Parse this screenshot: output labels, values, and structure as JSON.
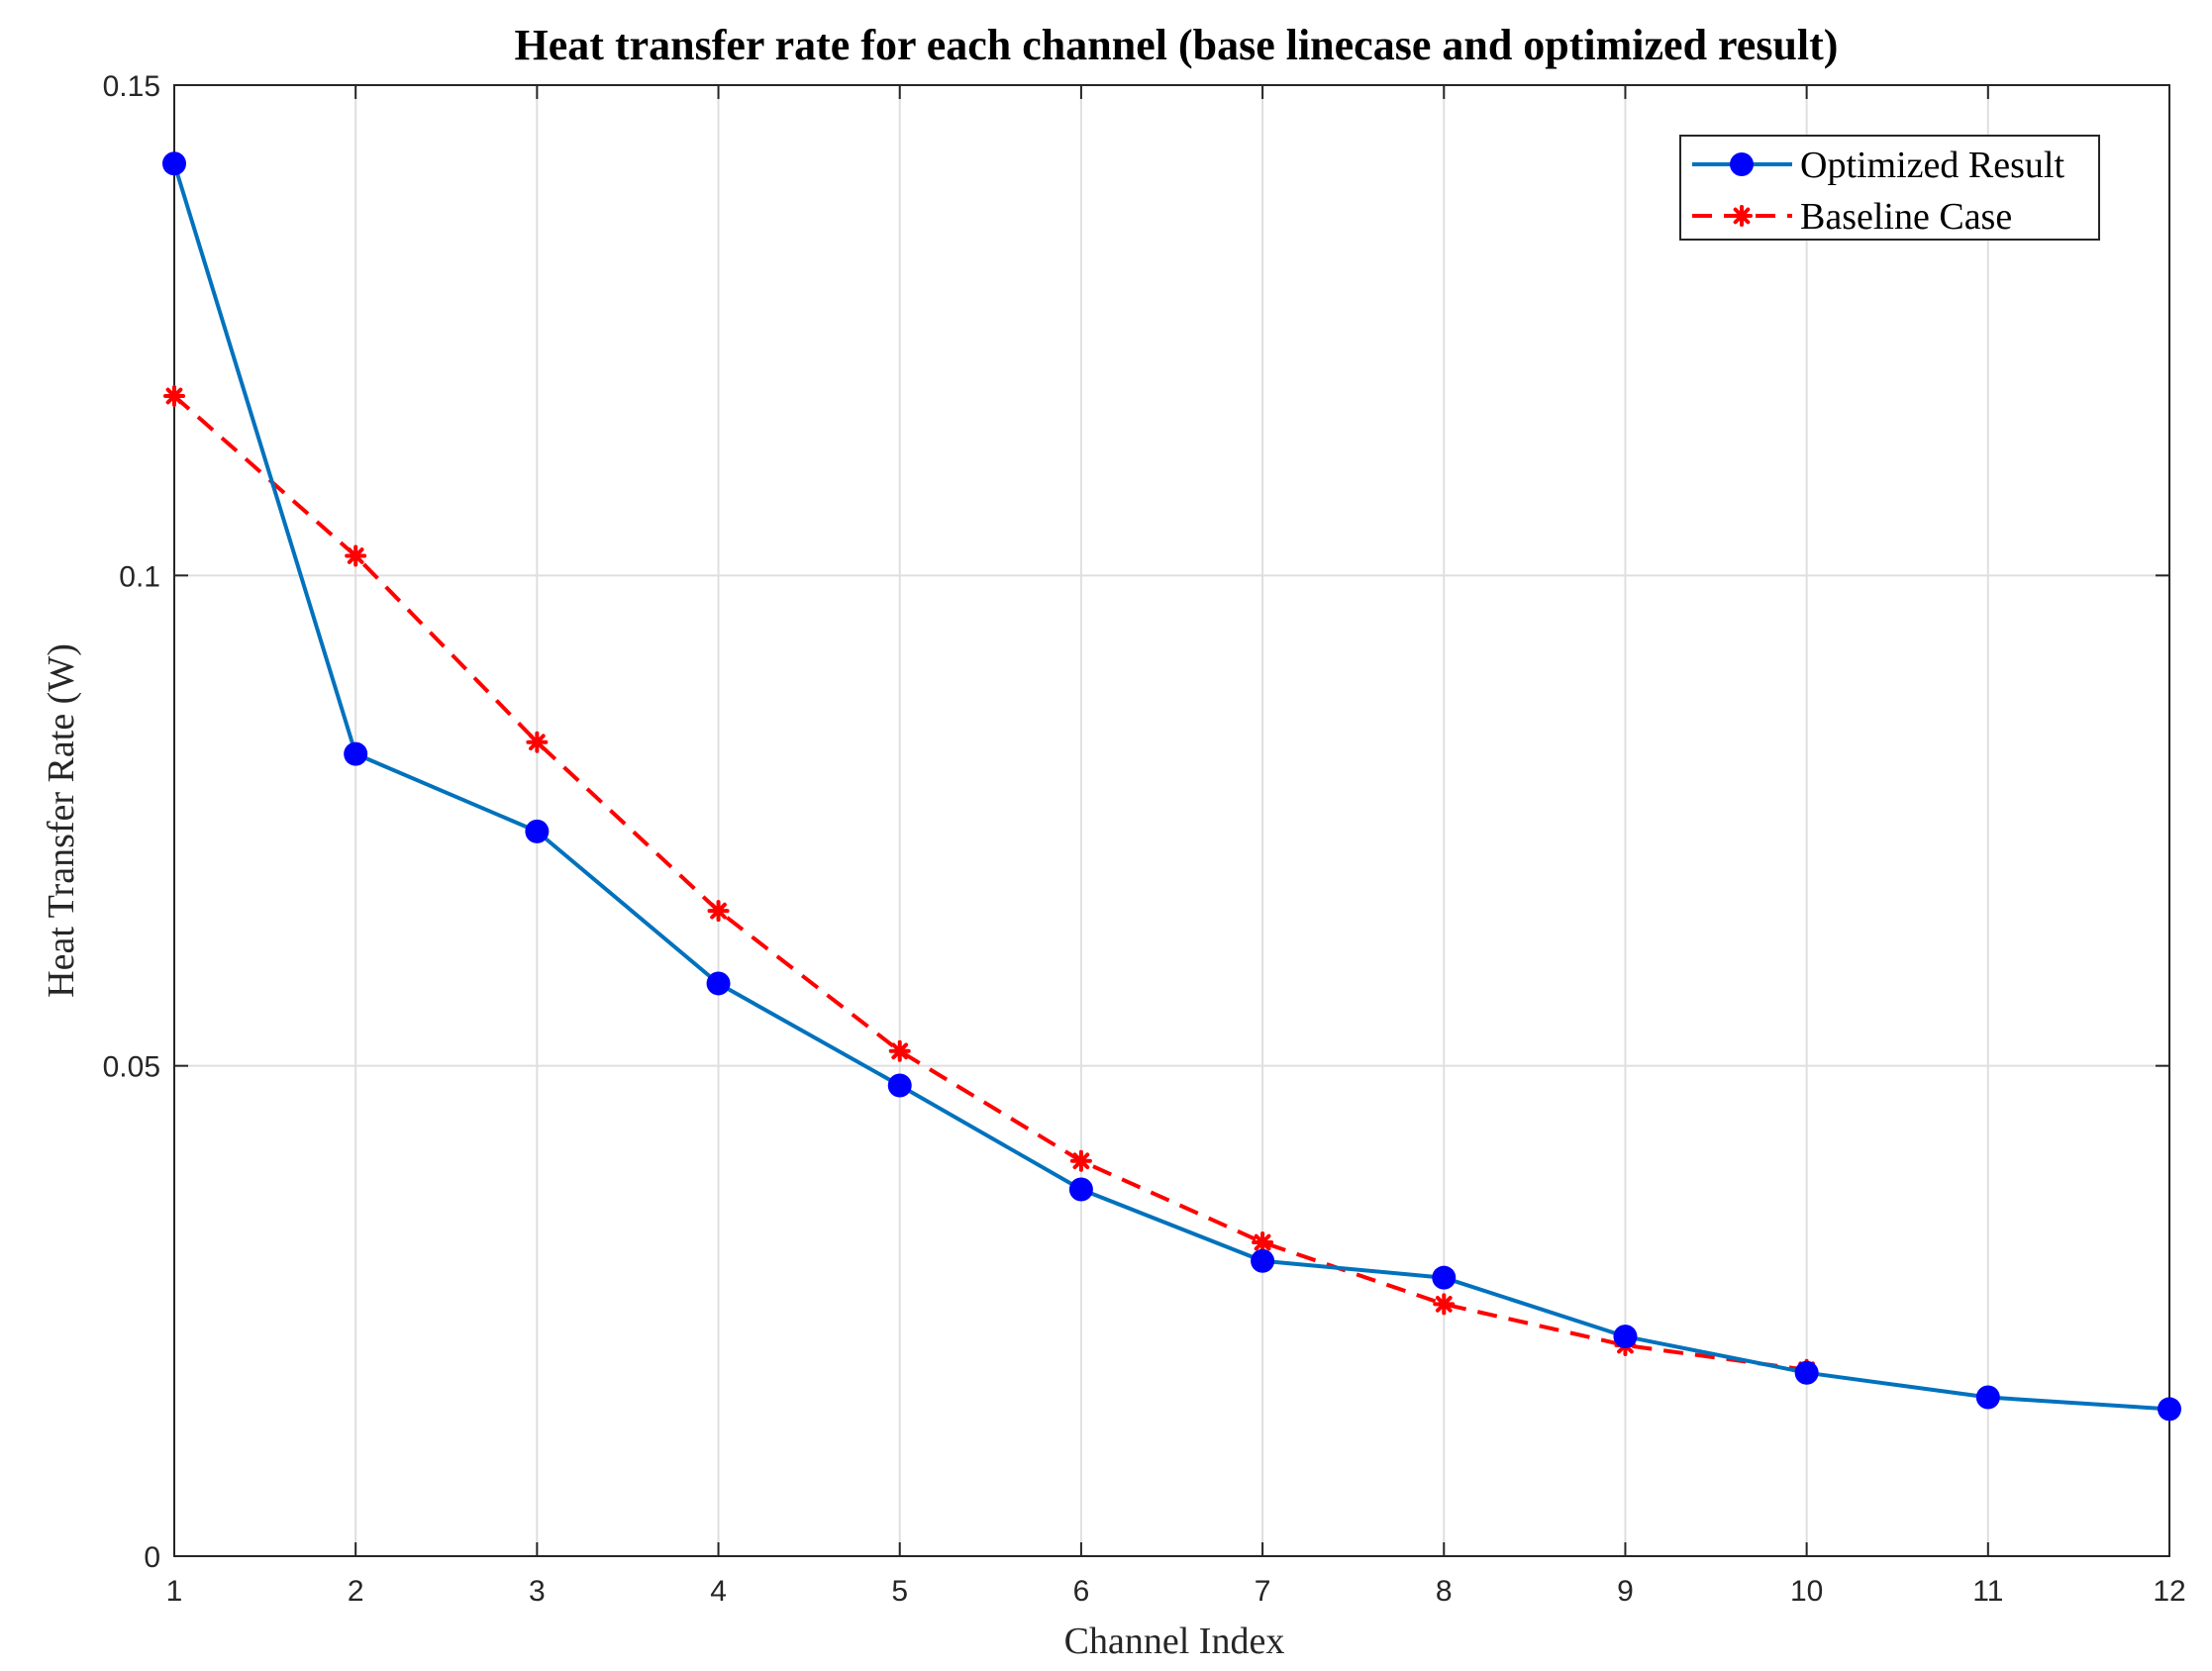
{
  "chart_data": {
    "type": "line",
    "title": "Heat transfer rate for each channel (base linecase and optimized result)",
    "xlabel": "Channel Index",
    "ylabel": "Heat Transfer Rate (W)",
    "xlim": [
      1,
      12
    ],
    "ylim": [
      0,
      0.15
    ],
    "x_ticks": [
      1,
      2,
      3,
      4,
      5,
      6,
      7,
      8,
      9,
      10,
      11,
      12
    ],
    "x_tick_labels": [
      "1",
      "2",
      "3",
      "4",
      "5",
      "6",
      "7",
      "8",
      "9",
      "10",
      "11",
      "12"
    ],
    "y_ticks": [
      0,
      0.05,
      0.1,
      0.15
    ],
    "y_tick_labels": [
      "0",
      "0.05",
      "0.1",
      "0.15"
    ],
    "grid": true,
    "legend_position": "top-right",
    "series": [
      {
        "name": "Optimized Result",
        "color": "#0072BD",
        "marker_color": "#0000FF",
        "style": "solid",
        "marker": "circle",
        "x": [
          1,
          2,
          3,
          4,
          5,
          6,
          7,
          8,
          9,
          10,
          11,
          12
        ],
        "values": [
          0.142,
          0.0818,
          0.0739,
          0.0584,
          0.048,
          0.0374,
          0.0301,
          0.0284,
          0.0224,
          0.0187,
          0.0162,
          0.015
        ]
      },
      {
        "name": "Baseline Case",
        "color": "#FF0000",
        "marker_color": "#FF0000",
        "style": "dashed",
        "marker": "asterisk",
        "x": [
          1,
          2,
          3,
          4,
          5,
          6,
          7,
          8,
          9,
          10
        ],
        "values": [
          0.1183,
          0.102,
          0.083,
          0.0658,
          0.0515,
          0.0403,
          0.032,
          0.0257,
          0.0215,
          0.019
        ]
      }
    ]
  }
}
